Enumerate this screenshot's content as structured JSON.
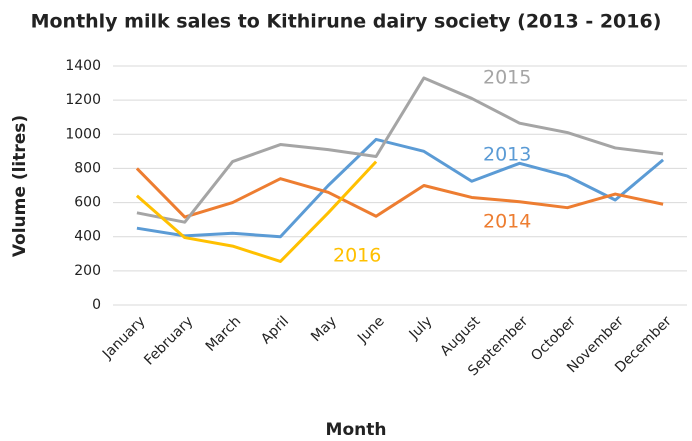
{
  "chart_data": {
    "type": "line",
    "title": "Monthly milk sales to Kithirune dairy society (2013 - 2016)",
    "x_label": "Month",
    "y_label": "Volume (litres)",
    "categories": [
      "January",
      "February",
      "March",
      "April",
      "May",
      "June",
      "July",
      "August",
      "September",
      "October",
      "November",
      "December"
    ],
    "series": [
      {
        "name": "2013",
        "color": "#5b9bd5",
        "values": [
          450,
          405,
          420,
          400,
          700,
          970,
          900,
          725,
          830,
          755,
          615,
          850
        ]
      },
      {
        "name": "2014",
        "color": "#ed7d31",
        "values": [
          800,
          515,
          600,
          740,
          660,
          520,
          700,
          630,
          605,
          570,
          650,
          590
        ]
      },
      {
        "name": "2015",
        "color": "#a5a5a5",
        "values": [
          540,
          485,
          840,
          940,
          910,
          870,
          1330,
          1210,
          1065,
          1010,
          920,
          885
        ]
      },
      {
        "name": "2016",
        "color": "#ffc000",
        "values": [
          640,
          395,
          345,
          255,
          540,
          840,
          null,
          null,
          null,
          null,
          null,
          null
        ]
      }
    ],
    "ylim": [
      0,
      1400
    ],
    "yticks": [
      0,
      200,
      400,
      600,
      800,
      1000,
      1200,
      1400
    ],
    "grid": true
  }
}
